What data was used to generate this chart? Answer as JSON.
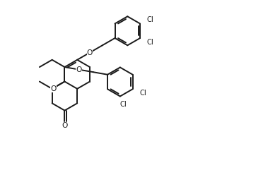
{
  "background_color": "#ffffff",
  "line_color": "#1a1a1a",
  "line_width": 1.4,
  "font_size": 7.2,
  "figsize": [
    3.96,
    2.58
  ],
  "dpi": 100,
  "xlim": [
    0,
    10
  ],
  "ylim": [
    0,
    6.5
  ]
}
